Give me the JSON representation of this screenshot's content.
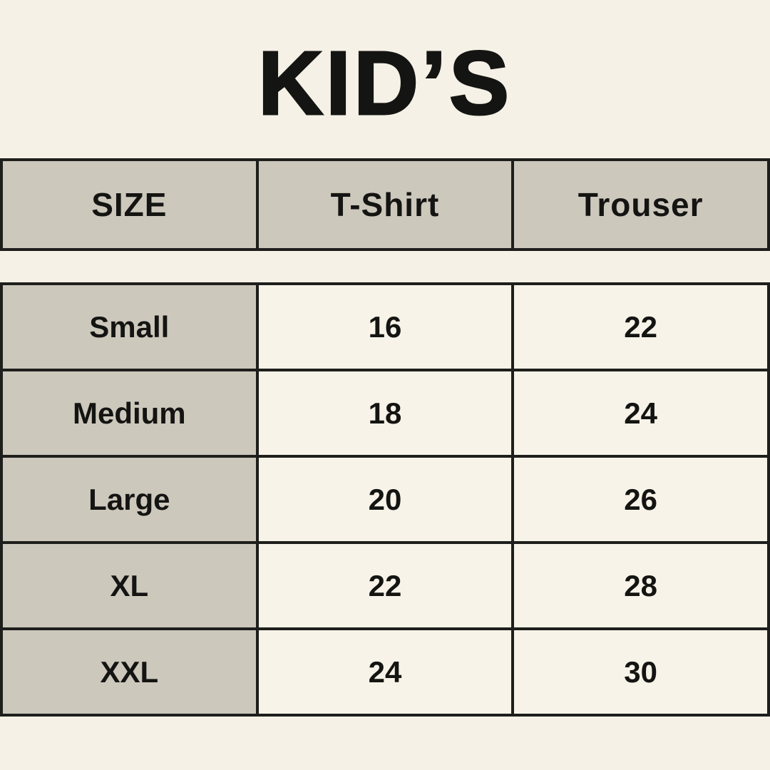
{
  "title": "KID’S",
  "colors": {
    "background": "#f5f1e6",
    "cell_cream": "#f7f3e8",
    "cell_taupe": "#cdc8bc",
    "border": "#1e1e1c",
    "text": "#141412"
  },
  "table": {
    "headers": [
      "SIZE",
      "T-Shirt",
      "Trouser"
    ],
    "rows": [
      {
        "size": "Small",
        "tshirt": "16",
        "trouser": "22"
      },
      {
        "size": "Medium",
        "tshirt": "18",
        "trouser": "24"
      },
      {
        "size": "Large",
        "tshirt": "20",
        "trouser": "26"
      },
      {
        "size": "XL",
        "tshirt": "22",
        "trouser": "28"
      },
      {
        "size": "XXL",
        "tshirt": "24",
        "trouser": "30"
      }
    ]
  },
  "chart_data": {
    "type": "table",
    "title": "KID’S",
    "columns": [
      "SIZE",
      "T-Shirt",
      "Trouser"
    ],
    "rows": [
      [
        "Small",
        16,
        22
      ],
      [
        "Medium",
        18,
        24
      ],
      [
        "Large",
        20,
        26
      ],
      [
        "XL",
        22,
        28
      ],
      [
        "XXL",
        24,
        30
      ]
    ]
  }
}
